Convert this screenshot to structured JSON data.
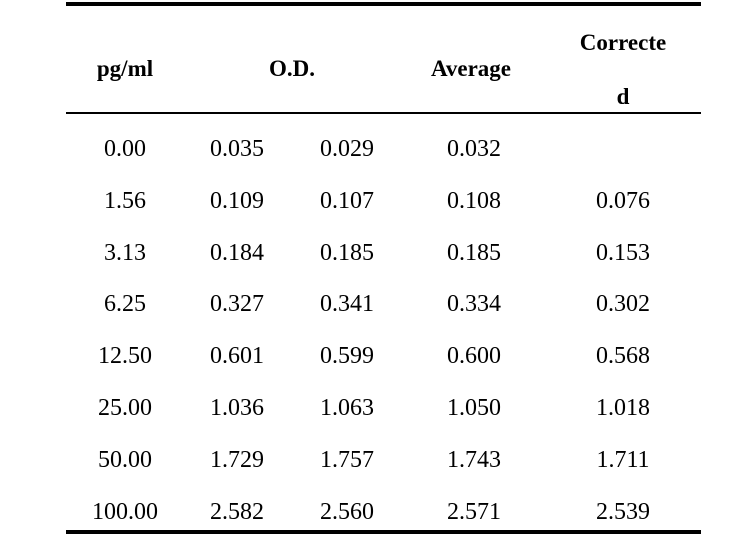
{
  "table": {
    "headers": {
      "pgml": "pg/ml",
      "od": "O.D.",
      "average": "Average",
      "corrected_line1": "Correcte",
      "corrected_line2": "d"
    },
    "rows": [
      {
        "pgml": "0.00",
        "od1": "0.035",
        "od2": "0.029",
        "average": "0.032",
        "corrected": ""
      },
      {
        "pgml": "1.56",
        "od1": "0.109",
        "od2": "0.107",
        "average": "0.108",
        "corrected": "0.076"
      },
      {
        "pgml": "3.13",
        "od1": "0.184",
        "od2": "0.185",
        "average": "0.185",
        "corrected": "0.153"
      },
      {
        "pgml": "6.25",
        "od1": "0.327",
        "od2": "0.341",
        "average": "0.334",
        "corrected": "0.302"
      },
      {
        "pgml": "12.50",
        "od1": "0.601",
        "od2": "0.599",
        "average": "0.600",
        "corrected": "0.568"
      },
      {
        "pgml": "25.00",
        "od1": "1.036",
        "od2": "1.063",
        "average": "1.050",
        "corrected": "1.018"
      },
      {
        "pgml": "50.00",
        "od1": "1.729",
        "od2": "1.757",
        "average": "1.743",
        "corrected": "1.711"
      },
      {
        "pgml": "100.00",
        "od1": "2.582",
        "od2": "2.560",
        "average": "2.571",
        "corrected": "2.539"
      }
    ]
  }
}
